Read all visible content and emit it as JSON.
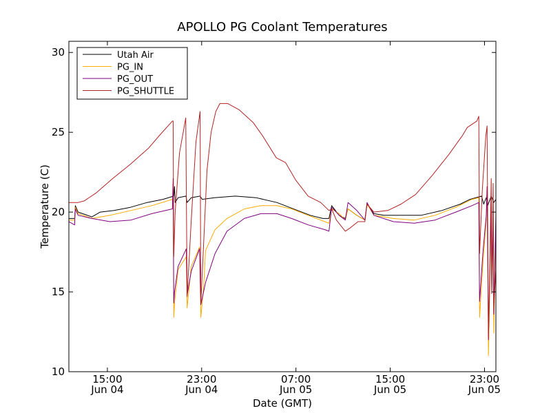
{
  "chart_data": {
    "type": "line",
    "title": "APOLLO PG Coolant Temperatures",
    "xlabel": "Date (GMT)",
    "ylabel": "Temperature (C)",
    "xlim": [
      "2015-06-04T11:44",
      "2015-06-05T23:58"
    ],
    "ylim": [
      10,
      30.7
    ],
    "yticks": [
      10,
      15,
      20,
      25,
      30
    ],
    "xticks": [
      {
        "t": "2015-06-04T15:00",
        "time": "15:00",
        "date": "Jun 04"
      },
      {
        "t": "2015-06-04T23:00",
        "time": "23:00",
        "date": "Jun 04"
      },
      {
        "t": "2015-06-05T07:00",
        "time": "07:00",
        "date": "Jun 05"
      },
      {
        "t": "2015-06-05T15:00",
        "time": "15:00",
        "date": "Jun 05"
      },
      {
        "t": "2015-06-05T23:00",
        "time": "23:00",
        "date": "Jun 05"
      }
    ],
    "legend_position": "top-left",
    "grid": false,
    "series": [
      {
        "name": "Utah Air",
        "color": "#000000",
        "points": [
          [
            "2015-06-04T11:44",
            19.6
          ],
          [
            "2015-06-04T12:13",
            19.6
          ],
          [
            "2015-06-04T12:17",
            20.4
          ],
          [
            "2015-06-04T12:31",
            20.0
          ],
          [
            "2015-06-04T13:41",
            19.7
          ],
          [
            "2015-06-04T14:24",
            20.0
          ],
          [
            "2015-06-04T15:34",
            20.1
          ],
          [
            "2015-06-04T16:57",
            20.3
          ],
          [
            "2015-06-04T18:22",
            20.6
          ],
          [
            "2015-06-04T19:43",
            20.8
          ],
          [
            "2015-06-04T20:38",
            21.0
          ],
          [
            "2015-06-04T20:42",
            21.6
          ],
          [
            "2015-06-04T20:45",
            20.6
          ],
          [
            "2015-06-04T21:00",
            20.9
          ],
          [
            "2015-06-04T21:40",
            21.0
          ],
          [
            "2015-06-04T21:46",
            20.6
          ],
          [
            "2015-06-04T22:07",
            20.9
          ],
          [
            "2015-06-04T22:52",
            21.0
          ],
          [
            "2015-06-04T23:03",
            20.8
          ],
          [
            "2015-06-05T00:05",
            20.9
          ],
          [
            "2015-06-05T01:51",
            21.0
          ],
          [
            "2015-06-05T03:37",
            20.9
          ],
          [
            "2015-06-05T05:23",
            20.6
          ],
          [
            "2015-06-05T07:09",
            20.1
          ],
          [
            "2015-06-05T08:13",
            19.8
          ],
          [
            "2015-06-05T09:17",
            19.6
          ],
          [
            "2015-06-05T09:48",
            19.6
          ],
          [
            "2015-06-05T10:02",
            20.4
          ],
          [
            "2015-06-05T10:40",
            19.8
          ],
          [
            "2015-06-05T11:11",
            19.6
          ],
          [
            "2015-06-05T11:25",
            20.2
          ],
          [
            "2015-06-05T12:10",
            19.8
          ],
          [
            "2015-06-05T12:51",
            19.5
          ],
          [
            "2015-06-05T13:02",
            20.5
          ],
          [
            "2015-06-05T13:37",
            19.9
          ],
          [
            "2015-06-05T14:27",
            19.8
          ],
          [
            "2015-06-05T15:51",
            19.8
          ],
          [
            "2015-06-05T17:37",
            19.8
          ],
          [
            "2015-06-05T19:23",
            20.1
          ],
          [
            "2015-06-05T20:57",
            20.5
          ],
          [
            "2015-06-05T21:46",
            20.8
          ],
          [
            "2015-06-05T22:45",
            21.0
          ],
          [
            "2015-06-05T22:56",
            20.5
          ],
          [
            "2015-06-05T23:09",
            20.9
          ],
          [
            "2015-06-05T23:16",
            20.4
          ],
          [
            "2015-06-05T23:34",
            21.0
          ],
          [
            "2015-06-05T23:47",
            20.6
          ],
          [
            "2015-06-05T23:58",
            20.8
          ]
        ]
      },
      {
        "name": "PG_IN",
        "color": "#ffaa00",
        "points": [
          [
            "2015-06-04T11:44",
            19.5
          ],
          [
            "2015-06-04T12:13",
            19.5
          ],
          [
            "2015-06-04T12:17",
            20.3
          ],
          [
            "2015-06-04T12:31",
            19.9
          ],
          [
            "2015-06-04T13:41",
            19.6
          ],
          [
            "2015-06-04T15:13",
            19.8
          ],
          [
            "2015-06-04T17:00",
            20.1
          ],
          [
            "2015-06-04T18:46",
            20.4
          ],
          [
            "2015-06-04T20:31",
            20.8
          ],
          [
            "2015-06-04T20:35",
            20.8
          ],
          [
            "2015-06-04T20:38",
            13.4
          ],
          [
            "2015-06-04T20:42",
            14.3
          ],
          [
            "2015-06-04T21:00",
            16.4
          ],
          [
            "2015-06-04T21:42",
            17.2
          ],
          [
            "2015-06-04T21:46",
            14.0
          ],
          [
            "2015-06-04T22:07",
            16.6
          ],
          [
            "2015-06-04T22:49",
            17.8
          ],
          [
            "2015-06-04T22:56",
            13.4
          ],
          [
            "2015-06-04T23:10",
            15.3
          ],
          [
            "2015-06-04T23:20",
            17.6
          ],
          [
            "2015-06-04T23:42",
            18.2
          ],
          [
            "2015-06-05T00:08",
            18.9
          ],
          [
            "2015-06-05T01:09",
            19.6
          ],
          [
            "2015-06-05T02:37",
            20.2
          ],
          [
            "2015-06-05T04:02",
            20.4
          ],
          [
            "2015-06-05T05:23",
            20.4
          ],
          [
            "2015-06-05T06:38",
            20.2
          ],
          [
            "2015-06-05T08:02",
            19.8
          ],
          [
            "2015-06-05T09:27",
            19.4
          ],
          [
            "2015-06-05T09:48",
            19.3
          ],
          [
            "2015-06-05T10:02",
            20.2
          ],
          [
            "2015-06-05T10:40",
            19.9
          ],
          [
            "2015-06-05T11:11",
            19.5
          ],
          [
            "2015-06-05T11:25",
            20.2
          ],
          [
            "2015-06-05T12:10",
            19.8
          ],
          [
            "2015-06-05T12:51",
            19.5
          ],
          [
            "2015-06-05T13:02",
            20.5
          ],
          [
            "2015-06-05T13:37",
            19.8
          ],
          [
            "2015-06-05T15:16",
            19.6
          ],
          [
            "2015-06-05T17:02",
            19.5
          ],
          [
            "2015-06-05T18:48",
            19.8
          ],
          [
            "2015-06-05T20:34",
            20.3
          ],
          [
            "2015-06-05T21:56",
            20.8
          ],
          [
            "2015-06-05T22:31",
            20.9
          ],
          [
            "2015-06-05T22:35",
            13.4
          ],
          [
            "2015-06-05T22:52",
            16.8
          ],
          [
            "2015-06-05T23:09",
            19.5
          ],
          [
            "2015-06-05T23:13",
            21.5
          ],
          [
            "2015-06-05T23:20",
            11.0
          ],
          [
            "2015-06-05T23:27",
            15.4
          ],
          [
            "2015-06-05T23:34",
            19.8
          ],
          [
            "2015-06-05T23:37",
            14.9
          ],
          [
            "2015-06-05T23:44",
            19.0
          ],
          [
            "2015-06-05T23:47",
            12.4
          ],
          [
            "2015-06-05T23:58",
            19.5
          ]
        ]
      },
      {
        "name": "PG_OUT",
        "color": "#800080",
        "points": [
          [
            "2015-06-04T11:44",
            19.4
          ],
          [
            "2015-06-04T12:13",
            19.2
          ],
          [
            "2015-06-04T12:17",
            20.2
          ],
          [
            "2015-06-04T12:31",
            19.8
          ],
          [
            "2015-06-04T13:41",
            19.6
          ],
          [
            "2015-06-04T15:13",
            19.4
          ],
          [
            "2015-06-04T17:00",
            19.5
          ],
          [
            "2015-06-04T18:46",
            19.9
          ],
          [
            "2015-06-04T20:31",
            20.2
          ],
          [
            "2015-06-04T20:35",
            22.1
          ],
          [
            "2015-06-04T20:38",
            14.3
          ],
          [
            "2015-06-04T20:42",
            15.0
          ],
          [
            "2015-06-04T21:00",
            16.6
          ],
          [
            "2015-06-04T21:42",
            17.7
          ],
          [
            "2015-06-04T21:46",
            14.8
          ],
          [
            "2015-06-04T22:07",
            16.3
          ],
          [
            "2015-06-04T22:49",
            17.7
          ],
          [
            "2015-06-04T22:56",
            14.2
          ],
          [
            "2015-06-04T23:20",
            15.6
          ],
          [
            "2015-06-05T00:08",
            17.4
          ],
          [
            "2015-06-05T01:09",
            18.8
          ],
          [
            "2015-06-05T02:37",
            19.6
          ],
          [
            "2015-06-05T04:02",
            19.9
          ],
          [
            "2015-06-05T05:23",
            19.9
          ],
          [
            "2015-06-05T06:38",
            19.6
          ],
          [
            "2015-06-05T08:02",
            19.2
          ],
          [
            "2015-06-05T09:27",
            18.9
          ],
          [
            "2015-06-05T09:48",
            18.8
          ],
          [
            "2015-06-05T10:02",
            20.3
          ],
          [
            "2015-06-05T10:40",
            19.8
          ],
          [
            "2015-06-05T11:11",
            19.5
          ],
          [
            "2015-06-05T11:25",
            20.6
          ],
          [
            "2015-06-05T12:10",
            20.1
          ],
          [
            "2015-06-05T12:51",
            19.5
          ],
          [
            "2015-06-05T13:02",
            20.6
          ],
          [
            "2015-06-05T13:37",
            19.8
          ],
          [
            "2015-06-05T15:16",
            19.4
          ],
          [
            "2015-06-05T17:02",
            19.3
          ],
          [
            "2015-06-05T18:48",
            19.5
          ],
          [
            "2015-06-05T20:34",
            20.0
          ],
          [
            "2015-06-05T21:56",
            20.4
          ],
          [
            "2015-06-05T22:31",
            20.6
          ],
          [
            "2015-06-05T22:35",
            14.4
          ],
          [
            "2015-06-05T22:52",
            17.5
          ],
          [
            "2015-06-05T23:09",
            19.8
          ],
          [
            "2015-06-05T23:13",
            21.6
          ],
          [
            "2015-06-05T23:20",
            12.0
          ],
          [
            "2015-06-05T23:27",
            16.0
          ],
          [
            "2015-06-05T23:34",
            20.3
          ],
          [
            "2015-06-05T23:37",
            14.9
          ],
          [
            "2015-06-05T23:44",
            19.5
          ],
          [
            "2015-06-05T23:47",
            13.6
          ],
          [
            "2015-06-05T23:58",
            19.9
          ]
        ]
      },
      {
        "name": "PG_SHUTTLE",
        "color": "#b22222",
        "points": [
          [
            "2015-06-04T11:44",
            20.6
          ],
          [
            "2015-06-04T12:13",
            20.6
          ],
          [
            "2015-06-04T12:17",
            20.6
          ],
          [
            "2015-06-04T12:31",
            20.6
          ],
          [
            "2015-06-04T13:02",
            20.7
          ],
          [
            "2015-06-04T14:03",
            21.2
          ],
          [
            "2015-06-04T15:27",
            22.1
          ],
          [
            "2015-06-04T16:57",
            23.0
          ],
          [
            "2015-06-04T18:29",
            24.0
          ],
          [
            "2015-06-04T19:32",
            24.9
          ],
          [
            "2015-06-04T20:31",
            25.7
          ],
          [
            "2015-06-04T20:35",
            25.7
          ],
          [
            "2015-06-04T20:38",
            17.2
          ],
          [
            "2015-06-04T20:45",
            20.0
          ],
          [
            "2015-06-04T21:07",
            23.7
          ],
          [
            "2015-06-04T21:39",
            25.9
          ],
          [
            "2015-06-04T21:46",
            14.7
          ],
          [
            "2015-06-04T22:07",
            19.5
          ],
          [
            "2015-06-04T22:31",
            24.4
          ],
          [
            "2015-06-04T22:52",
            26.3
          ],
          [
            "2015-06-04T22:56",
            14.3
          ],
          [
            "2015-06-04T23:13",
            18.8
          ],
          [
            "2015-06-04T23:27",
            22.6
          ],
          [
            "2015-06-04T23:48",
            25.0
          ],
          [
            "2015-06-05T00:12",
            26.3
          ],
          [
            "2015-06-05T00:33",
            26.8
          ],
          [
            "2015-06-05T01:13",
            26.8
          ],
          [
            "2015-06-05T02:12",
            26.4
          ],
          [
            "2015-06-05T03:23",
            25.6
          ],
          [
            "2015-06-05T04:09",
            24.8
          ],
          [
            "2015-06-05T05:20",
            23.4
          ],
          [
            "2015-06-05T06:07",
            23.1
          ],
          [
            "2015-06-05T06:59",
            22.0
          ],
          [
            "2015-06-05T08:02",
            21.0
          ],
          [
            "2015-06-05T09:06",
            20.6
          ],
          [
            "2015-06-05T09:48",
            20.1
          ],
          [
            "2015-06-05T10:02",
            20.2
          ],
          [
            "2015-06-05T10:26",
            19.5
          ],
          [
            "2015-06-05T11:11",
            18.8
          ],
          [
            "2015-06-05T11:35",
            19.0
          ],
          [
            "2015-06-05T12:16",
            19.4
          ],
          [
            "2015-06-05T12:51",
            19.4
          ],
          [
            "2015-06-05T13:02",
            20.5
          ],
          [
            "2015-06-05T13:37",
            20.0
          ],
          [
            "2015-06-05T14:48",
            20.1
          ],
          [
            "2015-06-05T15:55",
            20.5
          ],
          [
            "2015-06-05T17:09",
            21.1
          ],
          [
            "2015-06-05T18:34",
            22.3
          ],
          [
            "2015-06-05T19:58",
            23.6
          ],
          [
            "2015-06-05T21:08",
            24.8
          ],
          [
            "2015-06-05T21:32",
            25.3
          ],
          [
            "2015-06-05T22:21",
            25.7
          ],
          [
            "2015-06-05T22:31",
            26.0
          ],
          [
            "2015-06-05T22:35",
            17.4
          ],
          [
            "2015-06-05T22:49",
            21.4
          ],
          [
            "2015-06-05T23:06",
            24.7
          ],
          [
            "2015-06-05T23:13",
            25.4
          ],
          [
            "2015-06-05T23:20",
            12.1
          ],
          [
            "2015-06-05T23:27",
            16.6
          ],
          [
            "2015-06-05T23:34",
            22.1
          ],
          [
            "2015-06-05T23:37",
            14.9
          ],
          [
            "2015-06-05T23:44",
            21.8
          ],
          [
            "2015-06-05T23:47",
            14.0
          ],
          [
            "2015-06-05T23:58",
            16.4
          ]
        ]
      }
    ]
  }
}
